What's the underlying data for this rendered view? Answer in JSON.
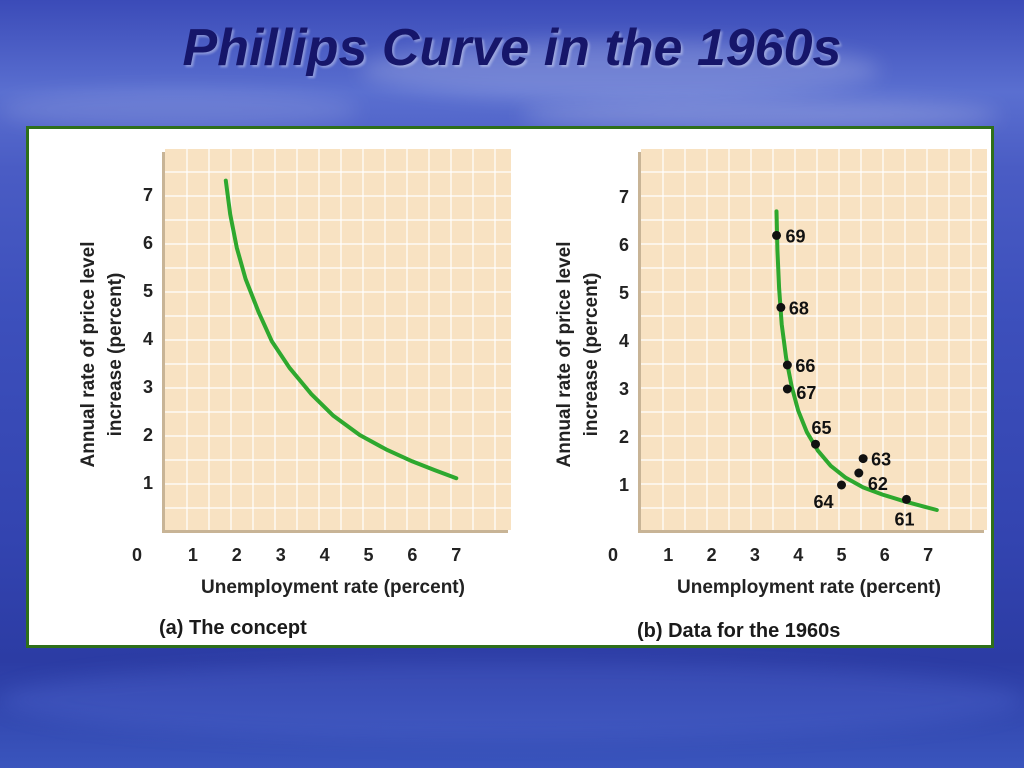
{
  "title": "Phillips Curve in the 1960s",
  "colors": {
    "plot_bg": "#f8e2c2",
    "grid": "#ffffff",
    "curve": "#2ea82e",
    "frame": "#2e6f1a"
  },
  "chart_data": [
    {
      "type": "line",
      "caption": "(a) The concept",
      "xlabel": "Unemployment rate (percent)",
      "ylabel_line1": "Annual rate of price level",
      "ylabel_line2": "increase (percent)",
      "xlim": [
        0,
        8
      ],
      "ylim": [
        0,
        8
      ],
      "xticks": [
        "0",
        "1",
        "2",
        "3",
        "4",
        "5",
        "6",
        "7"
      ],
      "yticks": [
        "1",
        "2",
        "3",
        "4",
        "5",
        "6",
        "7"
      ],
      "grid": true,
      "curve": {
        "x": [
          1.75,
          1.85,
          2.0,
          2.2,
          2.5,
          2.8,
          3.2,
          3.7,
          4.2,
          4.8,
          5.4,
          6.0,
          6.5,
          7.0
        ],
        "y": [
          7.3,
          6.6,
          5.9,
          5.25,
          4.55,
          3.95,
          3.4,
          2.85,
          2.4,
          2.0,
          1.7,
          1.45,
          1.27,
          1.1
        ]
      }
    },
    {
      "type": "scatter",
      "caption": "(b) Data for the 1960s",
      "xlabel": "Unemployment rate (percent)",
      "ylabel_line1": "Annual rate of price level",
      "ylabel_line2": "increase (percent)",
      "xlim": [
        0,
        8
      ],
      "ylim": [
        0,
        8
      ],
      "xticks": [
        "0",
        "1",
        "2",
        "3",
        "4",
        "5",
        "6",
        "7"
      ],
      "yticks": [
        "1",
        "2",
        "3",
        "4",
        "5",
        "6",
        "7"
      ],
      "grid": true,
      "curve": {
        "x": [
          3.5,
          3.52,
          3.56,
          3.62,
          3.72,
          3.85,
          4.0,
          4.2,
          4.45,
          4.75,
          5.1,
          5.5,
          5.95,
          6.45,
          6.9,
          7.2
        ],
        "y": [
          6.7,
          5.9,
          5.1,
          4.35,
          3.65,
          3.05,
          2.55,
          2.1,
          1.72,
          1.4,
          1.15,
          0.95,
          0.8,
          0.66,
          0.55,
          0.48
        ]
      },
      "points": [
        {
          "label": "61",
          "x": 6.5,
          "y": 0.7
        },
        {
          "label": "62",
          "x": 5.4,
          "y": 1.25
        },
        {
          "label": "63",
          "x": 5.5,
          "y": 1.55
        },
        {
          "label": "64",
          "x": 5.0,
          "y": 1.0
        },
        {
          "label": "65",
          "x": 4.4,
          "y": 1.85
        },
        {
          "label": "66",
          "x": 3.75,
          "y": 3.5
        },
        {
          "label": "67",
          "x": 3.75,
          "y": 3.0
        },
        {
          "label": "68",
          "x": 3.6,
          "y": 4.7
        },
        {
          "label": "69",
          "x": 3.5,
          "y": 6.2
        }
      ]
    }
  ]
}
